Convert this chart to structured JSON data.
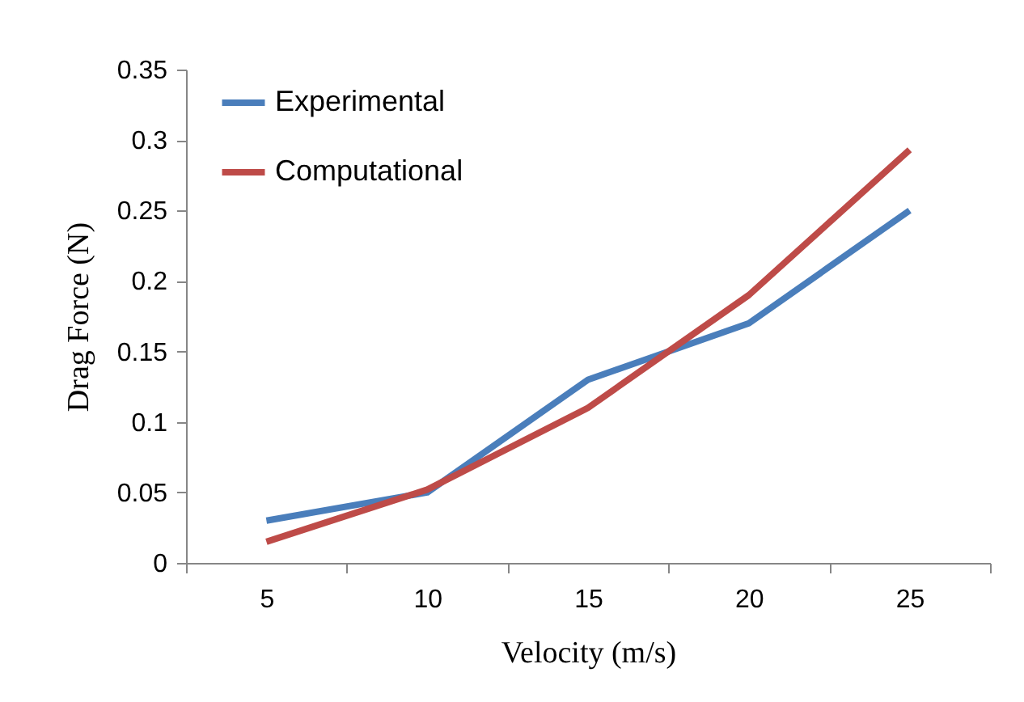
{
  "chart_data": {
    "type": "line",
    "xlabel": "Velocity (m/s)",
    "ylabel": "Drag Force (N)",
    "categories": [
      "5",
      "10",
      "15",
      "20",
      "25"
    ],
    "series": [
      {
        "name": "Experimental",
        "color": "#4a7ebb",
        "values": [
          0.03,
          0.05,
          0.13,
          0.17,
          0.25
        ]
      },
      {
        "name": "Computational",
        "color": "#be4b48",
        "values": [
          0.015,
          0.052,
          0.11,
          0.19,
          0.293
        ]
      }
    ],
    "ylim": [
      0,
      0.35
    ],
    "yticks": [
      0,
      0.05,
      0.1,
      0.15,
      0.2,
      0.25,
      0.3,
      0.35
    ],
    "grid": false,
    "legend": "top left",
    "marker": "none",
    "line_style": "solid"
  }
}
